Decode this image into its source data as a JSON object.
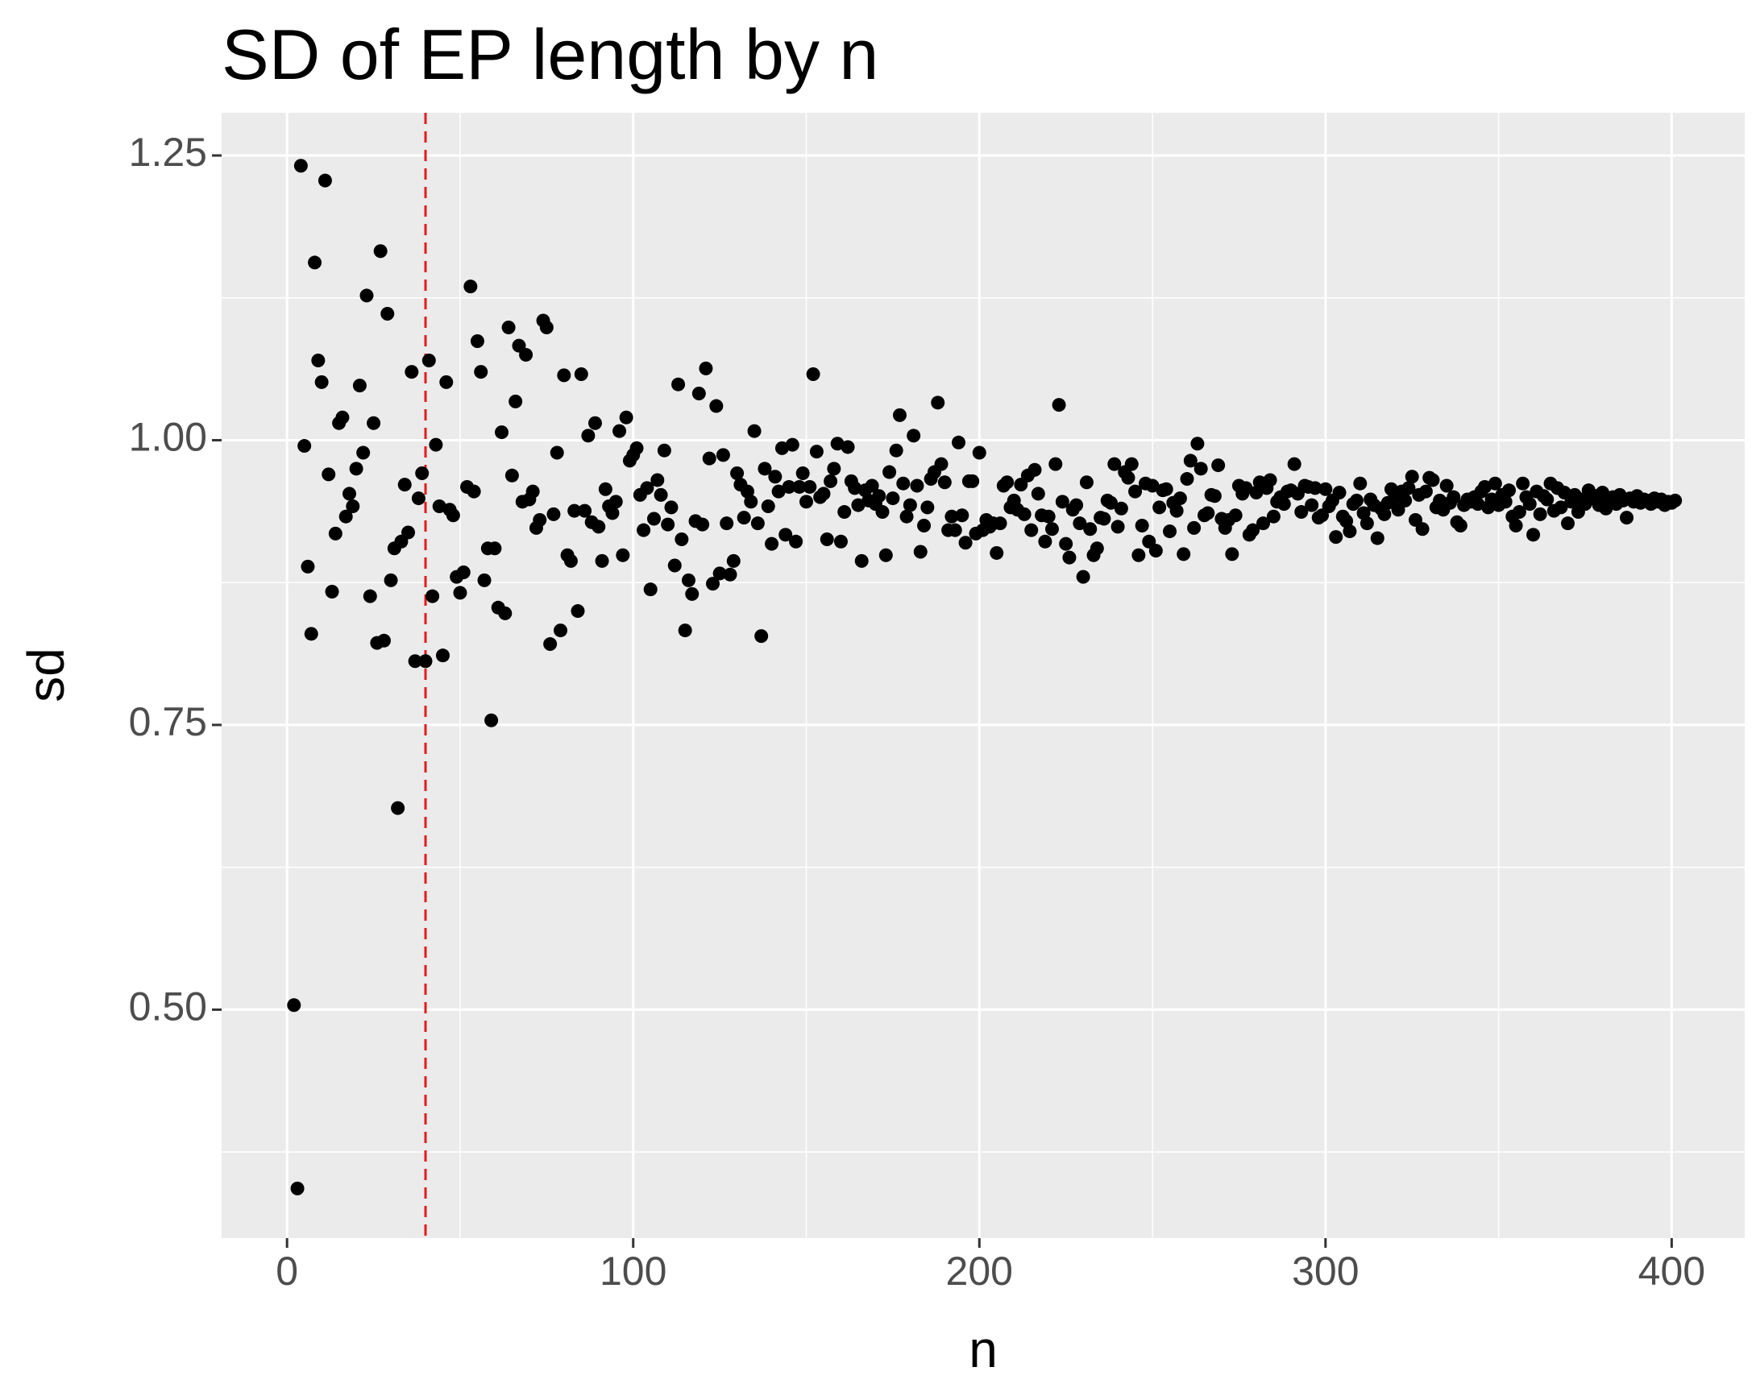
{
  "chart_data": {
    "type": "scatter",
    "title": "SD of EP length by n",
    "x_label": "n",
    "y_label": "sd",
    "x": [
      2,
      3,
      4,
      5,
      6,
      7,
      8,
      9,
      10,
      11,
      12,
      13,
      14,
      15,
      16,
      17,
      18,
      19,
      20,
      21,
      22,
      23,
      24,
      25,
      26,
      27,
      28,
      29,
      30,
      31,
      32,
      33,
      34,
      35,
      36,
      37,
      38,
      39,
      40,
      41,
      42,
      43,
      44,
      45,
      46,
      47,
      48,
      49,
      50,
      51,
      52,
      53,
      54,
      55,
      56,
      57,
      58,
      59,
      60,
      61,
      62,
      63,
      64,
      65,
      66,
      67,
      68,
      69,
      70,
      71,
      72,
      73,
      74,
      75,
      76,
      77,
      78,
      79,
      80,
      81,
      82,
      83,
      84,
      85,
      86,
      87,
      88,
      89,
      90,
      91,
      92,
      93,
      94,
      95,
      96,
      97,
      98,
      99,
      100,
      101,
      102,
      103,
      104,
      105,
      106,
      107,
      108,
      109,
      110,
      111,
      112,
      113,
      114,
      115,
      116,
      117,
      118,
      119,
      120,
      121,
      122,
      123,
      124,
      125,
      126,
      127,
      128,
      129,
      130,
      131,
      132,
      133,
      134,
      135,
      136,
      137,
      138,
      139,
      140,
      141,
      142,
      143,
      144,
      145,
      146,
      147,
      148,
      149,
      150,
      151,
      152,
      153,
      154,
      155,
      156,
      157,
      158,
      159,
      160,
      161,
      162,
      163,
      164,
      165,
      166,
      167,
      168,
      169,
      170,
      171,
      172,
      173,
      174,
      175,
      176,
      177,
      178,
      179,
      180,
      181,
      182,
      183,
      184,
      185,
      186,
      187,
      188,
      189,
      190,
      191,
      192,
      193,
      194,
      195,
      196,
      197,
      198,
      199,
      200,
      201,
      202,
      203,
      204,
      205,
      206,
      207,
      208,
      209,
      210,
      211,
      212,
      213,
      214,
      215,
      216,
      217,
      218,
      219,
      220,
      221,
      222,
      223,
      224,
      225,
      226,
      227,
      228,
      229,
      230,
      231,
      232,
      233,
      234,
      235,
      236,
      237,
      238,
      239,
      240,
      241,
      242,
      243,
      244,
      245,
      246,
      247,
      248,
      249,
      250,
      251,
      252,
      253,
      254,
      255,
      256,
      257,
      258,
      259,
      260,
      261,
      262,
      263,
      264,
      265,
      266,
      267,
      268,
      269,
      270,
      271,
      272,
      273,
      274,
      275,
      276,
      277,
      278,
      279,
      280,
      281,
      282,
      283,
      284,
      285,
      286,
      287,
      288,
      289,
      290,
      291,
      292,
      293,
      294,
      295,
      296,
      297,
      298,
      299,
      300,
      301,
      302,
      303,
      304,
      305,
      306,
      307,
      308,
      309,
      310,
      311,
      312,
      313,
      314,
      315,
      316,
      317,
      318,
      319,
      320,
      321,
      322,
      323,
      324,
      325,
      326,
      327,
      328,
      329,
      330,
      331,
      332,
      333,
      334,
      335,
      336,
      337,
      338,
      339,
      340,
      341,
      342,
      343,
      344,
      345,
      346,
      347,
      348,
      349,
      350,
      351,
      352,
      353,
      354,
      355,
      356,
      357,
      358,
      359,
      360,
      361,
      362,
      363,
      364,
      365,
      366,
      367,
      368,
      369,
      370,
      371,
      372,
      373,
      374,
      375,
      376,
      377,
      378,
      379,
      380,
      381,
      382,
      383,
      384,
      385,
      386,
      387,
      388,
      389,
      390,
      391,
      392,
      393,
      394,
      395,
      396,
      397,
      398,
      399,
      400,
      401
    ],
    "values": [
      0.504,
      0.343,
      1.241,
      0.995,
      0.889,
      0.83,
      1.156,
      1.07,
      1.051,
      1.228,
      0.97,
      0.867,
      0.918,
      1.015,
      1.02,
      0.933,
      0.953,
      0.942,
      0.975,
      1.048,
      0.989,
      1.127,
      0.863,
      1.015,
      0.822,
      1.166,
      0.824,
      1.111,
      0.877,
      0.905,
      0.677,
      0.911,
      0.961,
      0.919,
      1.06,
      0.806,
      0.949,
      0.971,
      0.806,
      1.07,
      0.863,
      0.996,
      0.942,
      0.811,
      1.051,
      0.939,
      0.934,
      0.88,
      0.866,
      0.884,
      0.959,
      1.135,
      0.955,
      1.087,
      1.06,
      0.877,
      0.905,
      0.754,
      0.905,
      0.853,
      1.007,
      0.848,
      1.099,
      0.969,
      1.034,
      1.083,
      0.946,
      1.075,
      0.948,
      0.955,
      0.923,
      0.93,
      1.105,
      1.099,
      0.821,
      0.935,
      0.989,
      0.833,
      1.057,
      0.899,
      0.894,
      0.938,
      0.85,
      1.058,
      0.938,
      1.004,
      0.928,
      1.015,
      0.924,
      0.894,
      0.957,
      0.942,
      0.936,
      0.946,
      1.008,
      0.899,
      1.02,
      0.982,
      0.987,
      0.993,
      0.952,
      0.921,
      0.958,
      0.869,
      0.931,
      0.965,
      0.952,
      0.991,
      0.926,
      0.941,
      0.89,
      1.049,
      0.913,
      0.833,
      0.877,
      0.865,
      0.929,
      1.041,
      0.926,
      1.063,
      0.984,
      0.874,
      1.03,
      0.883,
      0.987,
      0.927,
      0.882,
      0.894,
      0.971,
      0.961,
      0.932,
      0.955,
      0.946,
      1.008,
      0.927,
      0.828,
      0.975,
      0.942,
      0.909,
      0.968,
      0.955,
      0.993,
      0.917,
      0.959,
      0.996,
      0.911,
      0.959,
      0.971,
      0.946,
      0.959,
      1.058,
      0.99,
      0.95,
      0.953,
      0.913,
      0.964,
      0.975,
      0.997,
      0.911,
      0.937,
      0.994,
      0.964,
      0.958,
      0.943,
      0.894,
      0.956,
      0.947,
      0.96,
      0.944,
      0.951,
      0.937,
      0.899,
      0.972,
      0.949,
      0.991,
      1.022,
      0.962,
      0.933,
      0.943,
      1.004,
      0.96,
      0.902,
      0.925,
      0.941,
      0.966,
      0.972,
      1.033,
      0.979,
      0.963,
      0.921,
      0.933,
      0.921,
      0.998,
      0.934,
      0.91,
      0.964,
      0.964,
      0.918,
      0.989,
      0.921,
      0.93,
      0.924,
      0.927,
      0.901,
      0.927,
      0.96,
      0.963,
      0.941,
      0.947,
      0.939,
      0.961,
      0.935,
      0.969,
      0.921,
      0.974,
      0.953,
      0.934,
      0.911,
      0.933,
      0.922,
      0.979,
      1.031,
      0.946,
      0.909,
      0.897,
      0.939,
      0.943,
      0.927,
      0.88,
      0.963,
      0.922,
      0.899,
      0.905,
      0.932,
      0.931,
      0.947,
      0.945,
      0.979,
      0.924,
      0.94,
      0.972,
      0.967,
      0.979,
      0.955,
      0.899,
      0.925,
      0.962,
      0.911,
      0.96,
      0.903,
      0.941,
      0.956,
      0.957,
      0.92,
      0.945,
      0.938,
      0.949,
      0.9,
      0.966,
      0.982,
      0.923,
      0.997,
      0.975,
      0.934,
      0.936,
      0.952,
      0.951,
      0.978,
      0.931,
      0.923,
      0.93,
      0.9,
      0.934,
      0.96,
      0.953,
      0.958,
      0.917,
      0.921,
      0.954,
      0.963,
      0.927,
      0.958,
      0.965,
      0.933,
      0.946,
      0.95,
      0.944,
      0.955,
      0.956,
      0.979,
      0.953,
      0.937,
      0.96,
      0.959,
      0.943,
      0.958,
      0.932,
      0.934,
      0.957,
      0.942,
      0.947,
      0.915,
      0.954,
      0.933,
      0.929,
      0.92,
      0.944,
      0.947,
      0.962,
      0.936,
      0.927,
      0.948,
      0.943,
      0.914,
      0.94,
      0.935,
      0.945,
      0.957,
      0.95,
      0.939,
      0.955,
      0.947,
      0.958,
      0.968,
      0.93,
      0.952,
      0.922,
      0.955,
      0.967,
      0.965,
      0.941,
      0.947,
      0.939,
      0.96,
      0.945,
      0.95,
      0.928,
      0.925,
      0.943,
      0.948,
      0.946,
      0.95,
      0.944,
      0.955,
      0.959,
      0.941,
      0.948,
      0.962,
      0.943,
      0.952,
      0.946,
      0.956,
      0.933,
      0.925,
      0.937,
      0.962,
      0.95,
      0.944,
      0.917,
      0.955,
      0.935,
      0.951,
      0.948,
      0.962,
      0.938,
      0.958,
      0.941,
      0.954,
      0.927,
      0.946,
      0.952,
      0.937,
      0.948,
      0.944,
      0.956,
      0.949,
      0.951,
      0.943,
      0.954,
      0.94,
      0.946,
      0.95,
      0.944,
      0.952,
      0.947,
      0.932,
      0.949,
      0.946,
      0.951,
      0.945,
      0.948,
      0.947,
      0.944,
      0.949,
      0.946,
      0.948,
      0.943,
      0.946,
      0.945,
      0.947
    ],
    "color": "#000000",
    "xlim": [
      -18.9,
      421.1
    ],
    "ylim": [
      0.2994,
      1.2875
    ],
    "xticks": [
      0,
      100,
      200,
      300,
      400
    ],
    "yticks": [
      {
        "value": 0.5,
        "label": "0.50"
      },
      {
        "value": 0.75,
        "label": "0.75"
      },
      {
        "value": 1.0,
        "label": "1.00"
      },
      {
        "value": 1.25,
        "label": "1.25"
      }
    ],
    "xminor": [
      50,
      150,
      250,
      350
    ],
    "yminor": [
      0.375,
      0.625,
      0.875,
      1.125
    ],
    "grid": true,
    "panel_color": "#ebebeb",
    "reference_line": {
      "x": 40,
      "color": "#e41a1c",
      "style": "dashed"
    }
  }
}
